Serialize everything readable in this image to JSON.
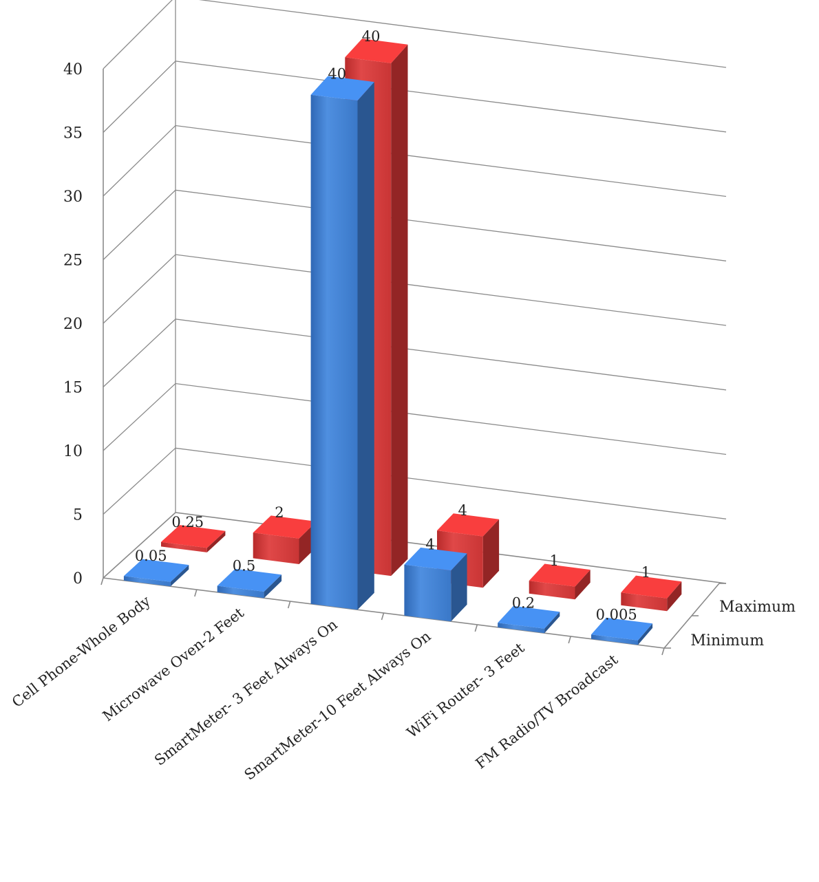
{
  "chart_data": {
    "type": "bar",
    "style": "3d-clustered-column",
    "categories": [
      "Cell Phone-Whole Body",
      "Microwave Oven-2 Feet",
      "SmartMeter- 3 Feet Always On",
      "SmartMeter-10 Feet Always On",
      "WiFi Router- 3 Feet",
      "FM Radio/TV Broadcast"
    ],
    "series": [
      {
        "name": "Minimum",
        "color": "#3a78c8",
        "values": [
          0.05,
          0.5,
          40,
          4,
          0.2,
          0.005
        ],
        "labels": [
          "0.05",
          "0.5",
          "40",
          "4",
          "0.2",
          "0.005"
        ]
      },
      {
        "name": "Maximum",
        "color": "#cc3333",
        "values": [
          0.25,
          2,
          40,
          4,
          1,
          1
        ],
        "labels": [
          "0.25",
          "2",
          "40",
          "4",
          "1",
          "1"
        ]
      }
    ],
    "yticks": [
      "0",
      "5",
      "10",
      "15",
      "20",
      "25",
      "30",
      "35",
      "40"
    ],
    "ylim": [
      0,
      40
    ],
    "grid": true,
    "title": "",
    "xlabel": "",
    "ylabel": ""
  }
}
